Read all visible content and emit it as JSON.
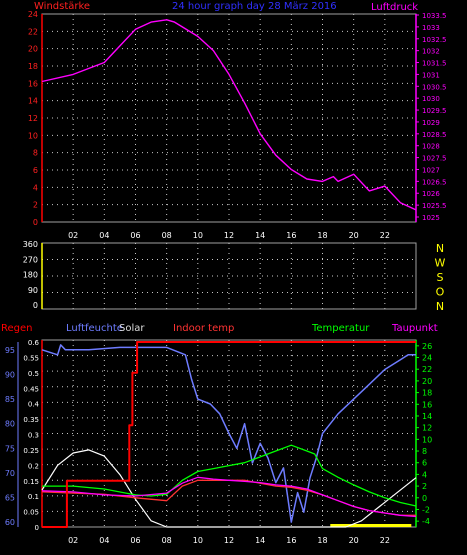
{
  "colors": {
    "background": "#000000",
    "frame": "#a0a0a0",
    "grid": "#c8c8c8",
    "wind_axis": "#ff0000",
    "wind_label": "#ff2020",
    "title": "#3030ff",
    "pressure": "#ff00ff",
    "dir_axis": "#ffff00",
    "regen": "#ff0000",
    "luftfeuchte": "#6e7cff",
    "solar": "#ffffff",
    "indoor": "#ff3333",
    "temperatur": "#00ff00",
    "taupunkt": "#ff00ff",
    "solar_bar": "#ffff00",
    "tick_text": "#ffffff"
  },
  "chart_data": [
    {
      "type": "line",
      "title": "24 hour graph day 28 März 2016",
      "left_axis_label": "Windstärke",
      "right_axis_label": "Luftdruck",
      "x_ticks": [
        "02",
        "04",
        "06",
        "08",
        "10",
        "12",
        "14",
        "16",
        "18",
        "20",
        "22"
      ],
      "left_ticks": [
        "0",
        "2",
        "4",
        "6",
        "8",
        "10",
        "12",
        "14",
        "16",
        "18",
        "20",
        "22",
        "24"
      ],
      "left_range": [
        0,
        24
      ],
      "right_ticks": [
        "1025",
        "1025.5",
        "1026",
        "1026.5",
        "1027",
        "1027.5",
        "1028",
        "1028.5",
        "1029",
        "1029.5",
        "1030",
        "1030.5",
        "1031",
        "1031.5",
        "1032",
        "1032.5",
        "1033",
        "1033.5"
      ],
      "right_range": [
        1025,
        1033.5
      ],
      "grid": true,
      "series": [
        {
          "name": "Luftdruck",
          "axis": "right",
          "hours": [
            0,
            2,
            4,
            5,
            6,
            7,
            8,
            8.5,
            9,
            10,
            11,
            12,
            13,
            14,
            15,
            16,
            17,
            18,
            18.7,
            19,
            20,
            21,
            22,
            23,
            24
          ],
          "values": [
            1030.7,
            1031.0,
            1031.5,
            1032.2,
            1032.9,
            1033.2,
            1033.3,
            1033.2,
            1033.0,
            1032.6,
            1032.0,
            1031.0,
            1029.8,
            1028.5,
            1027.6,
            1027.0,
            1026.6,
            1026.5,
            1026.7,
            1026.5,
            1026.8,
            1026.1,
            1026.3,
            1025.6,
            1025.3
          ]
        }
      ]
    },
    {
      "type": "line",
      "left_ticks": [
        "0",
        "90",
        "180",
        "270",
        "360"
      ],
      "left_range": [
        0,
        360
      ],
      "right_labels": [
        "N",
        "W",
        "S",
        "O",
        "N"
      ],
      "grid": true,
      "series": []
    },
    {
      "type": "line",
      "legend": [
        "Regen",
        "Luftfeuchte",
        "Solar",
        "Indoor temp",
        "Temperatur",
        "Taupunkt"
      ],
      "humidity_ticks": [
        "60",
        "65",
        "70",
        "75",
        "80",
        "85",
        "90",
        "95"
      ],
      "humidity_range": [
        59,
        97
      ],
      "rain_ticks": [
        "0",
        "0.05",
        "0.1",
        "0.15",
        "0.2",
        "0.25",
        "0.3",
        "0.35",
        "0.4",
        "0.45",
        "0.5",
        "0.55",
        "0.6"
      ],
      "rain_range": [
        0,
        0.6
      ],
      "temp_ticks": [
        "-4",
        "-2",
        "0",
        "2",
        "4",
        "6",
        "8",
        "10",
        "12",
        "14",
        "16",
        "18",
        "20",
        "22",
        "24",
        "26"
      ],
      "temp_range": [
        -5,
        27
      ],
      "x_ticks": [
        "02",
        "04",
        "06",
        "08",
        "10",
        "12",
        "14",
        "16",
        "18",
        "20",
        "22"
      ],
      "grid": true,
      "series": [
        {
          "name": "Regen",
          "axis": "rain",
          "hours": [
            0,
            1.6,
            1.6,
            5.6,
            5.6,
            5.8,
            5.8,
            6.1,
            6.1,
            24
          ],
          "values": [
            0,
            0,
            0.15,
            0.15,
            0.33,
            0.33,
            0.5,
            0.5,
            0.6,
            0.6
          ]
        },
        {
          "name": "Luftfeuchte",
          "axis": "humidity",
          "hours": [
            0,
            1.0,
            1.2,
            1.5,
            3,
            5,
            8,
            9.2,
            9.6,
            10,
            10.8,
            11.4,
            12,
            12.5,
            13,
            13.5,
            14,
            14.5,
            15,
            15.5,
            16,
            16.4,
            16.8,
            17.2,
            17.6,
            18,
            18.5,
            19,
            20,
            21,
            22,
            23,
            23.5,
            24
          ],
          "values": [
            95,
            94,
            96,
            95,
            95,
            95.5,
            95.5,
            94,
            89,
            85,
            84,
            82,
            78,
            75,
            80,
            72,
            76,
            73,
            68,
            71,
            60,
            66,
            62,
            69,
            73,
            78,
            80,
            82,
            85,
            88,
            91,
            93,
            94,
            94
          ]
        },
        {
          "name": "Solar",
          "axis": "rain",
          "hours": [
            0,
            1,
            2,
            3,
            4,
            5,
            6,
            7,
            8,
            19.5,
            20.5,
            21.5,
            22.5,
            23.5,
            24
          ],
          "values": [
            0.12,
            0.2,
            0.24,
            0.25,
            0.23,
            0.17,
            0.09,
            0.02,
            0,
            0,
            0.02,
            0.06,
            0.1,
            0.14,
            0.16
          ]
        },
        {
          "name": "Indoor temp",
          "axis": "temp",
          "hours": [
            0,
            4,
            6,
            8,
            9,
            10,
            11,
            12,
            13,
            14,
            15,
            16,
            17,
            18,
            19,
            20,
            21,
            22,
            23,
            24
          ],
          "values": [
            1,
            0.6,
            0,
            -0.5,
            2,
            3,
            3,
            3,
            3,
            2.5,
            2,
            1.8,
            1.3,
            0.5,
            -0.5,
            -1.5,
            -2.2,
            -2.6,
            -3,
            -3
          ]
        },
        {
          "name": "Temperatur",
          "axis": "temp",
          "hours": [
            0,
            2,
            4,
            6,
            7,
            8,
            9,
            10,
            11,
            12,
            13,
            14,
            15,
            16,
            17,
            17.5,
            18,
            19,
            20,
            21,
            22,
            23,
            24
          ],
          "values": [
            2,
            2,
            1.5,
            0.5,
            0.3,
            0.6,
            3,
            4.5,
            5,
            5.5,
            6,
            7,
            8,
            9,
            8,
            7.5,
            5,
            3.5,
            2.2,
            1,
            0,
            -0.8,
            -1.4
          ]
        },
        {
          "name": "Taupunkt",
          "axis": "temp",
          "hours": [
            0,
            2,
            4,
            6,
            8,
            9,
            10,
            11,
            12,
            13,
            14,
            15,
            16,
            17,
            18,
            19,
            20,
            21,
            22,
            23,
            24
          ],
          "values": [
            1.2,
            1.0,
            0.5,
            0.3,
            0.8,
            2.5,
            3.5,
            3.2,
            3.0,
            2.8,
            2.6,
            2.2,
            2.0,
            1.5,
            0.5,
            -0.5,
            -1.5,
            -2.2,
            -2.6,
            -3.0,
            -3.2
          ]
        },
        {
          "name": "Solar bar",
          "axis": "bar",
          "hours": [
            18.5,
            23.7
          ],
          "values": [
            1,
            1
          ]
        }
      ]
    }
  ]
}
